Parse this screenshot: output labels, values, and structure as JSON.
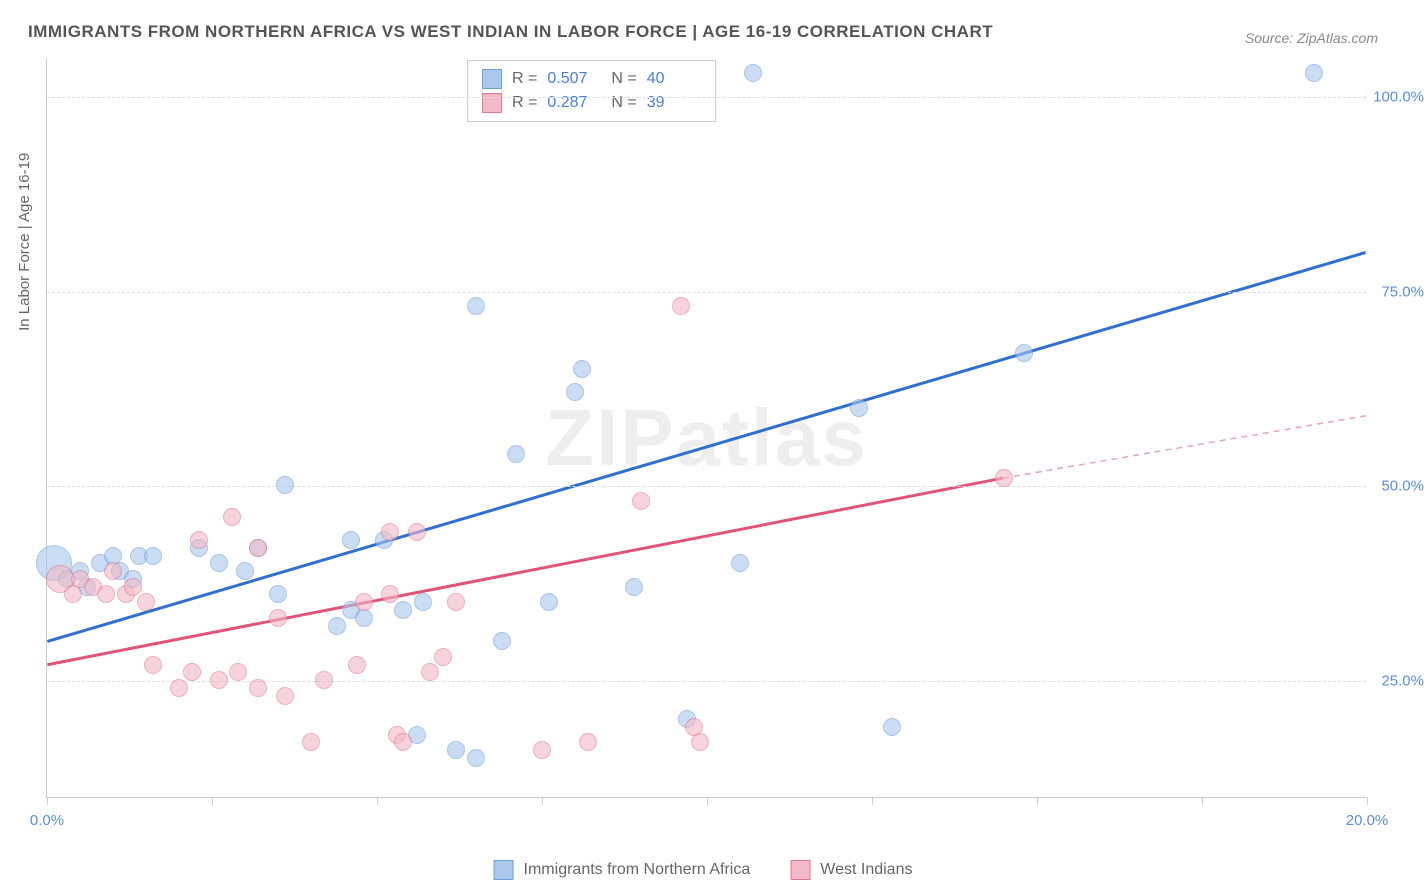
{
  "title": "IMMIGRANTS FROM NORTHERN AFRICA VS WEST INDIAN IN LABOR FORCE | AGE 16-19 CORRELATION CHART",
  "source_label": "Source:",
  "source_name": "ZipAtlas.com",
  "watermark": "ZIPatlas",
  "ylabel": "In Labor Force | Age 16-19",
  "chart": {
    "type": "scatter",
    "background_color": "#ffffff",
    "grid_color": "#dddddd",
    "axis_color": "#cccccc",
    "xlim": [
      0,
      20
    ],
    "ylim": [
      10,
      105
    ],
    "xtick_positions": [
      0,
      2.5,
      5,
      7.5,
      10,
      12.5,
      15,
      17.5,
      20
    ],
    "xtick_labels": {
      "0": "0.0%",
      "20": "20.0%"
    },
    "ytick_positions": [
      25,
      50,
      75,
      100
    ],
    "ytick_labels": [
      "25.0%",
      "50.0%",
      "75.0%",
      "100.0%"
    ],
    "title_fontsize": 17,
    "label_fontsize": 15,
    "series": [
      {
        "name": "Immigrants from Northern Africa",
        "key": "series_a",
        "fill": "#a9c8ec",
        "stroke": "#6f9fd8",
        "fill_opacity": 0.6,
        "marker_radius": 9,
        "R": "0.507",
        "N": "40",
        "trend": {
          "color": "#2e6fd0",
          "width": 3,
          "x1": 0,
          "y1": 30,
          "x2": 20,
          "y2": 80,
          "dash": "none"
        },
        "points": [
          {
            "x": 0.1,
            "y": 40,
            "r": 18
          },
          {
            "x": 0.3,
            "y": 38
          },
          {
            "x": 0.5,
            "y": 39
          },
          {
            "x": 0.6,
            "y": 37
          },
          {
            "x": 0.8,
            "y": 40
          },
          {
            "x": 1.0,
            "y": 41
          },
          {
            "x": 1.1,
            "y": 39
          },
          {
            "x": 1.3,
            "y": 38
          },
          {
            "x": 1.4,
            "y": 41
          },
          {
            "x": 1.6,
            "y": 41
          },
          {
            "x": 2.3,
            "y": 42
          },
          {
            "x": 2.6,
            "y": 40
          },
          {
            "x": 3.0,
            "y": 39
          },
          {
            "x": 3.2,
            "y": 42
          },
          {
            "x": 3.5,
            "y": 36
          },
          {
            "x": 3.6,
            "y": 50
          },
          {
            "x": 4.4,
            "y": 32
          },
          {
            "x": 4.6,
            "y": 43
          },
          {
            "x": 4.6,
            "y": 34
          },
          {
            "x": 4.8,
            "y": 33
          },
          {
            "x": 5.1,
            "y": 43
          },
          {
            "x": 5.4,
            "y": 34
          },
          {
            "x": 5.6,
            "y": 18
          },
          {
            "x": 5.7,
            "y": 35
          },
          {
            "x": 6.2,
            "y": 16
          },
          {
            "x": 6.5,
            "y": 15
          },
          {
            "x": 6.5,
            "y": 73
          },
          {
            "x": 6.9,
            "y": 30
          },
          {
            "x": 7.1,
            "y": 54
          },
          {
            "x": 7.6,
            "y": 35
          },
          {
            "x": 8.0,
            "y": 62
          },
          {
            "x": 8.1,
            "y": 65
          },
          {
            "x": 8.9,
            "y": 37
          },
          {
            "x": 9.7,
            "y": 20
          },
          {
            "x": 10.5,
            "y": 40
          },
          {
            "x": 10.7,
            "y": 103
          },
          {
            "x": 12.3,
            "y": 60
          },
          {
            "x": 12.8,
            "y": 19
          },
          {
            "x": 14.8,
            "y": 67
          },
          {
            "x": 19.2,
            "y": 103
          }
        ]
      },
      {
        "name": "West Indians",
        "key": "series_b",
        "fill": "#f2b9c7",
        "stroke": "#e07a94",
        "fill_opacity": 0.6,
        "marker_radius": 9,
        "R": "0.287",
        "N": "39",
        "trend": {
          "color": "#e05577",
          "width": 3,
          "x1": 0,
          "y1": 27,
          "x2": 14.5,
          "y2": 51,
          "dash": "none"
        },
        "trend_ext": {
          "color": "#e9a3b3",
          "width": 1.5,
          "x1": 14.5,
          "y1": 51,
          "x2": 20,
          "y2": 59,
          "dash": "6,5"
        },
        "points": [
          {
            "x": 0.2,
            "y": 38,
            "r": 14
          },
          {
            "x": 0.4,
            "y": 36
          },
          {
            "x": 0.5,
            "y": 38
          },
          {
            "x": 0.7,
            "y": 37
          },
          {
            "x": 0.9,
            "y": 36
          },
          {
            "x": 1.0,
            "y": 39
          },
          {
            "x": 1.2,
            "y": 36
          },
          {
            "x": 1.3,
            "y": 37
          },
          {
            "x": 1.5,
            "y": 35
          },
          {
            "x": 1.6,
            "y": 27
          },
          {
            "x": 2.0,
            "y": 24
          },
          {
            "x": 2.2,
            "y": 26
          },
          {
            "x": 2.3,
            "y": 43
          },
          {
            "x": 2.6,
            "y": 25
          },
          {
            "x": 2.8,
            "y": 46
          },
          {
            "x": 2.9,
            "y": 26
          },
          {
            "x": 3.2,
            "y": 24
          },
          {
            "x": 3.2,
            "y": 42
          },
          {
            "x": 3.5,
            "y": 33
          },
          {
            "x": 3.6,
            "y": 23
          },
          {
            "x": 4.0,
            "y": 17
          },
          {
            "x": 4.2,
            "y": 25
          },
          {
            "x": 4.7,
            "y": 27
          },
          {
            "x": 4.8,
            "y": 35
          },
          {
            "x": 5.2,
            "y": 44
          },
          {
            "x": 5.2,
            "y": 36
          },
          {
            "x": 5.3,
            "y": 18
          },
          {
            "x": 5.4,
            "y": 17
          },
          {
            "x": 5.6,
            "y": 44
          },
          {
            "x": 5.8,
            "y": 26
          },
          {
            "x": 6.0,
            "y": 28
          },
          {
            "x": 6.2,
            "y": 35
          },
          {
            "x": 7.5,
            "y": 16
          },
          {
            "x": 8.2,
            "y": 17
          },
          {
            "x": 9.0,
            "y": 48
          },
          {
            "x": 9.6,
            "y": 73
          },
          {
            "x": 9.8,
            "y": 19
          },
          {
            "x": 9.9,
            "y": 17
          },
          {
            "x": 14.5,
            "y": 51
          }
        ]
      }
    ]
  },
  "stats_box": {
    "r_label": "R =",
    "n_label": "N ="
  },
  "legend": {
    "series_a_label": "Immigrants from Northern Africa",
    "series_b_label": "West Indians"
  }
}
